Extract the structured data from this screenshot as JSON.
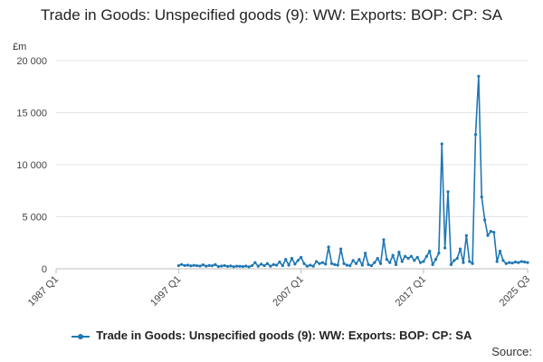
{
  "chart_data": {
    "type": "line",
    "title": "Trade in Goods: Unspecified goods (9): WW: Exports: BOP: CP: SA",
    "ylabel_unit": "£m",
    "ylim": [
      0,
      20000
    ],
    "yticks": [
      0,
      5000,
      10000,
      15000,
      20000
    ],
    "ytick_labels": [
      "0",
      "5 000",
      "10 000",
      "15 000",
      "20 000"
    ],
    "xlim": [
      "1987 Q1",
      "2025 Q3"
    ],
    "xtick_labels": [
      "1987 Q1",
      "1997 Q1",
      "2007 Q1",
      "2017 Q1",
      "2025 Q3"
    ],
    "grid": true,
    "legend_position": "bottom",
    "series": [
      {
        "name": "Trade in Goods: Unspecified goods (9): WW: Exports: BOP: CP: SA",
        "color": "#1f77b4",
        "points": [
          [
            "1997 Q1",
            300
          ],
          [
            "1997 Q2",
            420
          ],
          [
            "1997 Q3",
            310
          ],
          [
            "1997 Q4",
            350
          ],
          [
            "1998 Q1",
            280
          ],
          [
            "1998 Q2",
            330
          ],
          [
            "1998 Q3",
            300
          ],
          [
            "1998 Q4",
            260
          ],
          [
            "1999 Q1",
            380
          ],
          [
            "1999 Q2",
            250
          ],
          [
            "1999 Q3",
            320
          ],
          [
            "1999 Q4",
            290
          ],
          [
            "2000 Q1",
            400
          ],
          [
            "2000 Q2",
            220
          ],
          [
            "2000 Q3",
            260
          ],
          [
            "2000 Q4",
            310
          ],
          [
            "2001 Q1",
            230
          ],
          [
            "2001 Q2",
            270
          ],
          [
            "2001 Q3",
            200
          ],
          [
            "2001 Q4",
            250
          ],
          [
            "2002 Q1",
            240
          ],
          [
            "2002 Q2",
            220
          ],
          [
            "2002 Q3",
            260
          ],
          [
            "2002 Q4",
            190
          ],
          [
            "2003 Q1",
            300
          ],
          [
            "2003 Q2",
            600
          ],
          [
            "2003 Q3",
            250
          ],
          [
            "2003 Q4",
            450
          ],
          [
            "2004 Q1",
            300
          ],
          [
            "2004 Q2",
            500
          ],
          [
            "2004 Q3",
            250
          ],
          [
            "2004 Q4",
            400
          ],
          [
            "2005 Q1",
            350
          ],
          [
            "2005 Q2",
            650
          ],
          [
            "2005 Q3",
            300
          ],
          [
            "2005 Q4",
            900
          ],
          [
            "2006 Q1",
            350
          ],
          [
            "2006 Q2",
            1000
          ],
          [
            "2006 Q3",
            450
          ],
          [
            "2006 Q4",
            800
          ],
          [
            "2007 Q1",
            1100
          ],
          [
            "2007 Q2",
            500
          ],
          [
            "2007 Q3",
            250
          ],
          [
            "2007 Q4",
            350
          ],
          [
            "2008 Q1",
            250
          ],
          [
            "2008 Q2",
            700
          ],
          [
            "2008 Q3",
            500
          ],
          [
            "2008 Q4",
            600
          ],
          [
            "2009 Q1",
            450
          ],
          [
            "2009 Q2",
            2100
          ],
          [
            "2009 Q3",
            500
          ],
          [
            "2009 Q4",
            400
          ],
          [
            "2010 Q1",
            350
          ],
          [
            "2010 Q2",
            1900
          ],
          [
            "2010 Q3",
            500
          ],
          [
            "2010 Q4",
            350
          ],
          [
            "2011 Q1",
            300
          ],
          [
            "2011 Q2",
            800
          ],
          [
            "2011 Q3",
            500
          ],
          [
            "2011 Q4",
            900
          ],
          [
            "2012 Q1",
            350
          ],
          [
            "2012 Q2",
            1500
          ],
          [
            "2012 Q3",
            400
          ],
          [
            "2012 Q4",
            300
          ],
          [
            "2013 Q1",
            600
          ],
          [
            "2013 Q2",
            1000
          ],
          [
            "2013 Q3",
            500
          ],
          [
            "2013 Q4",
            2800
          ],
          [
            "2014 Q1",
            900
          ],
          [
            "2014 Q2",
            600
          ],
          [
            "2014 Q3",
            1300
          ],
          [
            "2014 Q4",
            400
          ],
          [
            "2015 Q1",
            1600
          ],
          [
            "2015 Q2",
            700
          ],
          [
            "2015 Q3",
            1200
          ],
          [
            "2015 Q4",
            1000
          ],
          [
            "2016 Q1",
            1200
          ],
          [
            "2016 Q2",
            800
          ],
          [
            "2016 Q3",
            1100
          ],
          [
            "2016 Q4",
            600
          ],
          [
            "2017 Q1",
            700
          ],
          [
            "2017 Q2",
            1200
          ],
          [
            "2017 Q3",
            1700
          ],
          [
            "2017 Q4",
            400
          ],
          [
            "2018 Q1",
            900
          ],
          [
            "2018 Q2",
            1500
          ],
          [
            "2018 Q3",
            12000
          ],
          [
            "2018 Q4",
            2000
          ],
          [
            "2019 Q1",
            7400
          ],
          [
            "2019 Q2",
            400
          ],
          [
            "2019 Q3",
            800
          ],
          [
            "2019 Q4",
            1000
          ],
          [
            "2020 Q1",
            1900
          ],
          [
            "2020 Q2",
            600
          ],
          [
            "2020 Q3",
            3200
          ],
          [
            "2020 Q4",
            700
          ],
          [
            "2021 Q1",
            500
          ],
          [
            "2021 Q2",
            12900
          ],
          [
            "2021 Q3",
            18500
          ],
          [
            "2021 Q4",
            6900
          ],
          [
            "2022 Q1",
            4700
          ],
          [
            "2022 Q2",
            3200
          ],
          [
            "2022 Q3",
            3600
          ],
          [
            "2022 Q4",
            3500
          ],
          [
            "2023 Q1",
            700
          ],
          [
            "2023 Q2",
            1700
          ],
          [
            "2023 Q3",
            800
          ],
          [
            "2023 Q4",
            500
          ],
          [
            "2024 Q1",
            600
          ],
          [
            "2024 Q2",
            550
          ],
          [
            "2024 Q3",
            650
          ],
          [
            "2024 Q4",
            600
          ],
          [
            "2025 Q1",
            700
          ],
          [
            "2025 Q2",
            650
          ],
          [
            "2025 Q3",
            600
          ]
        ]
      }
    ]
  },
  "legend": {
    "label": "Trade in Goods: Unspecified goods (9): WW: Exports: BOP: CP: SA"
  },
  "source": {
    "label": "Source:"
  }
}
